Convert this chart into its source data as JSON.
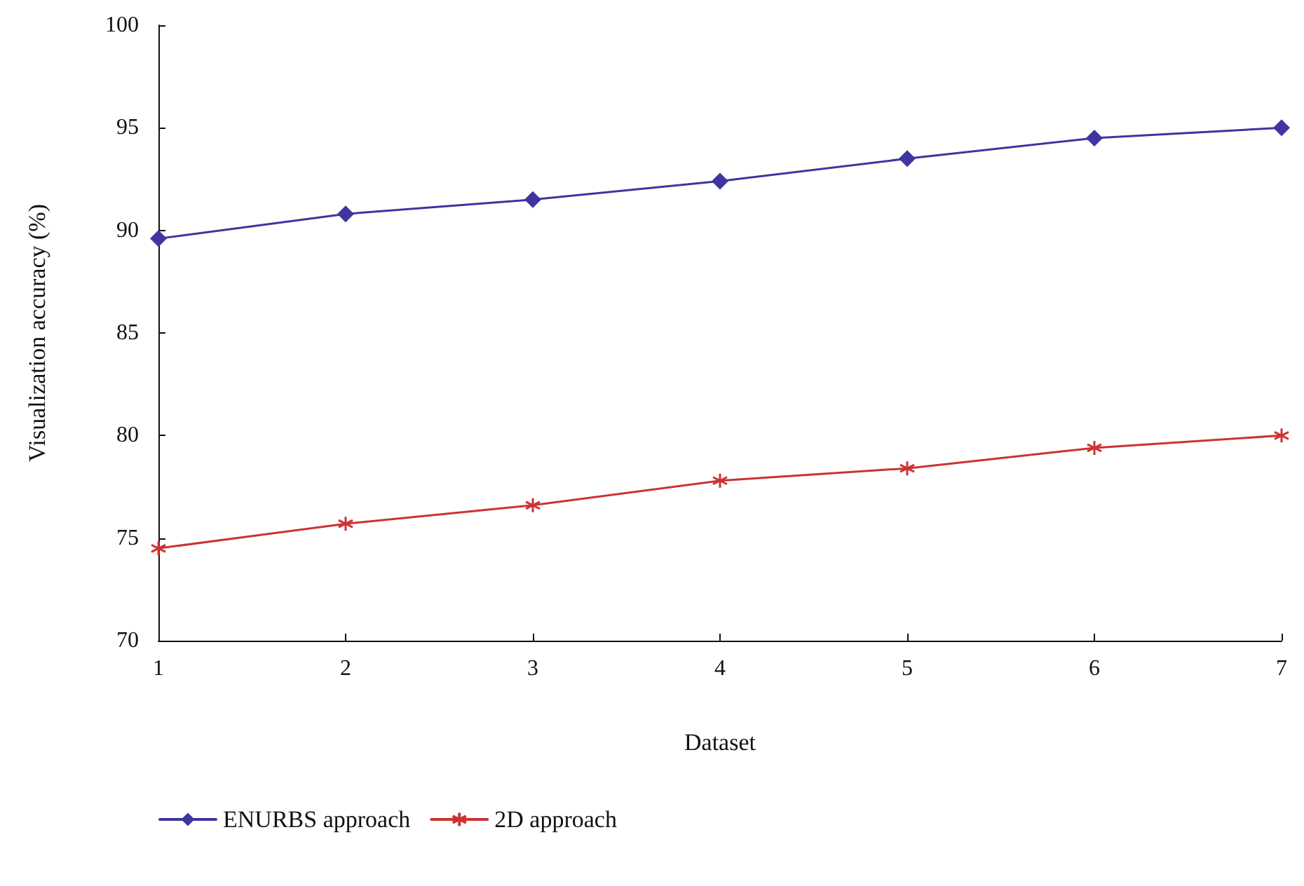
{
  "chart_data": {
    "type": "line",
    "xlabel": "Dataset",
    "ylabel": "Visualization accuracy (%)",
    "x": [
      1,
      2,
      3,
      4,
      5,
      6,
      7
    ],
    "series": [
      {
        "name": "ENURBS approach",
        "color": "#3f35a0",
        "marker": "diamond",
        "values": [
          89.6,
          90.8,
          91.5,
          92.4,
          93.5,
          94.5,
          95.0
        ]
      },
      {
        "name": "2D approach",
        "color": "#cc3333",
        "marker": "cross",
        "values": [
          74.5,
          75.7,
          76.6,
          77.8,
          78.4,
          79.4,
          80.0
        ]
      }
    ],
    "xlim": [
      1,
      7
    ],
    "xticks": [
      1,
      2,
      3,
      4,
      5,
      6,
      7
    ],
    "ylim": [
      70,
      100
    ],
    "yticks": [
      70,
      75,
      80,
      85,
      90,
      95,
      100
    ],
    "grid": false,
    "legend": "bottom left",
    "line_style": "solid"
  }
}
